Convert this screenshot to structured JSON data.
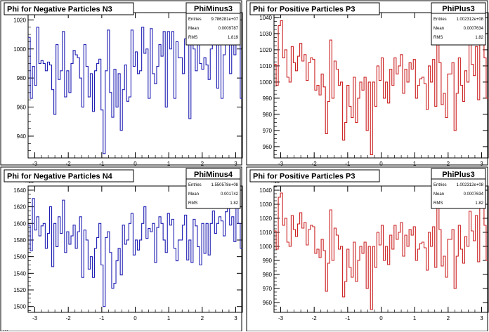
{
  "footer_text": "...",
  "chart_data": [
    {
      "type": "line",
      "title": "Phi for Negative Particles N3",
      "stats_name": "PhiMinus3",
      "stats": [
        {
          "label": "Entries",
          "value": "9.786281e+07"
        },
        {
          "label": "Mean",
          "value": "0.0009787"
        },
        {
          "label": "RMS",
          "value": "1.819"
        }
      ],
      "exponent_label": "×10",
      "line_color": "#1f1fb4",
      "xlim": [
        -3.2,
        3.2
      ],
      "ylim": [
        925,
        1025
      ],
      "xticks": [
        "-3",
        "-2",
        "-1",
        "0",
        "1",
        "2",
        "3"
      ],
      "yticks": [
        940,
        960,
        980,
        1000,
        1020
      ],
      "values": [
        1008,
        966,
        988,
        975,
        1015,
        990,
        992,
        990,
        985,
        991,
        989,
        972,
        955,
        1003,
        979,
        985,
        1012,
        967,
        985,
        970,
        990,
        999,
        996,
        994,
        980,
        960,
        1003,
        988,
        967,
        983,
        957,
        985,
        990,
        993,
        958,
        928,
        985,
        1013,
        970,
        953,
        986,
        960,
        983,
        944,
        972,
        989,
        964,
        967,
        1013,
        988,
        998,
        983,
        985,
        1015,
        997,
        1000,
        966,
        1014,
        983,
        976,
        988,
        1003,
        995,
        1012,
        960,
        1012,
        1000,
        1012,
        966,
        1005,
        994,
        994,
        983,
        1007,
        1015,
        952,
        1008,
        1000,
        985,
        1016,
        990,
        986,
        994,
        989,
        979,
        1000,
        1004,
        1005,
        973,
        1004,
        966,
        996,
        1014,
        1006,
        983,
        1005,
        996,
        1017,
        1012,
        966
      ]
    },
    {
      "type": "line",
      "title": "Phi for Positive Particles P3",
      "stats_name": "PhiPlus3",
      "stats": [
        {
          "label": "Entries",
          "value": "1.002312e+08"
        },
        {
          "label": "Mean",
          "value": "0.0007634"
        },
        {
          "label": "RMS",
          "value": "1.82"
        }
      ],
      "exponent_label": "×10³",
      "line_color": "#cc2020",
      "xlim": [
        -3.2,
        3.2
      ],
      "ylim": [
        953,
        1043
      ],
      "xticks": [
        "-3",
        "-2",
        "-1",
        "0",
        "1",
        "2",
        "3"
      ],
      "yticks": [
        960,
        970,
        980,
        990,
        1000,
        1010,
        1020,
        1030,
        1040
      ],
      "values": [
        1011,
        998,
        1035,
        1038,
        1015,
        1020,
        1003,
        1000,
        1022,
        1012,
        1007,
        1016,
        1024,
        1013,
        1017,
        1001,
        1012,
        1015,
        1014,
        995,
        998,
        992,
        1005,
        997,
        968,
        988,
        1026,
        990,
        1013,
        1008,
        998,
        1000,
        964,
        975,
        998,
        985,
        978,
        1003,
        975,
        990,
        1000,
        995,
        1003,
        970,
        1000,
        955,
        1000,
        985,
        1010,
        1001,
        1015,
        990,
        1000,
        987,
        1008,
        998,
        1015,
        1005,
        1010,
        1017,
        993,
        1008,
        1000,
        1012,
        1008,
        1014,
        990,
        998,
        1002,
        1003,
        999,
        983,
        1010,
        1000,
        1014,
        985,
        1028,
        1012,
        986,
        993,
        978,
        1005,
        1005,
        1012,
        970,
        993,
        1015,
        998,
        988,
        1007,
        1000,
        1025,
        1011,
        1004,
        1022,
        989,
        1030,
        1040,
        1015,
        990
      ]
    },
    {
      "type": "line",
      "title": "Phi for Negative Particles N4",
      "stats_name": "PhiMinus4",
      "stats": [
        {
          "label": "Entries",
          "value": "1.550578e+08"
        },
        {
          "label": "Mean",
          "value": "0.001742"
        },
        {
          "label": "RMS",
          "value": "1.82"
        }
      ],
      "exponent_label": "×10",
      "line_color": "#1f1fb4",
      "xlim": [
        -3.2,
        3.2
      ],
      "ylim": [
        1493,
        1645
      ],
      "xticks": [
        "-3",
        "-2",
        "-1",
        "0",
        "1",
        "2",
        "3"
      ],
      "yticks": [
        1500,
        1520,
        1540,
        1560,
        1580,
        1600,
        1620,
        1640
      ],
      "values": [
        1598,
        1567,
        1630,
        1592,
        1608,
        1585,
        1597,
        1600,
        1570,
        1588,
        1620,
        1548,
        1600,
        1572,
        1608,
        1588,
        1628,
        1565,
        1590,
        1575,
        1585,
        1598,
        1570,
        1590,
        1608,
        1535,
        1592,
        1580,
        1545,
        1560,
        1535,
        1570,
        1583,
        1600,
        1550,
        1500,
        1583,
        1590,
        1565,
        1522,
        1528,
        1555,
        1570,
        1538,
        1598,
        1575,
        1580,
        1600,
        1612,
        1562,
        1580,
        1568,
        1580,
        1600,
        1620,
        1582,
        1594,
        1590,
        1600,
        1553,
        1595,
        1608,
        1600,
        1580,
        1565,
        1612,
        1598,
        1605,
        1570,
        1555,
        1580,
        1580,
        1598,
        1610,
        1556,
        1580,
        1553,
        1605,
        1597,
        1572,
        1550,
        1600,
        1564,
        1600,
        1562,
        1600,
        1615,
        1588,
        1600,
        1608,
        1603,
        1585,
        1614,
        1620,
        1598,
        1608,
        1578,
        1622,
        1600,
        1570
      ]
    },
    {
      "type": "line",
      "title": "Phi for Positive Particles P3",
      "stats_name": "PhiPlus3",
      "stats": [
        {
          "label": "Entries",
          "value": "1.002312e+08"
        },
        {
          "label": "Mean",
          "value": "0.0007634"
        },
        {
          "label": "RMS",
          "value": "1.82"
        }
      ],
      "exponent_label": "×10³",
      "line_color": "#cc2020",
      "xlim": [
        -3.2,
        3.2
      ],
      "ylim": [
        953,
        1043
      ],
      "xticks": [
        "-3",
        "-2",
        "-1",
        "0",
        "1",
        "2",
        "3"
      ],
      "yticks": [
        960,
        970,
        980,
        990,
        1000,
        1010,
        1020,
        1030,
        1040
      ],
      "values": [
        1011,
        998,
        1035,
        1038,
        1015,
        1020,
        1003,
        1000,
        1022,
        1012,
        1007,
        1016,
        1024,
        1013,
        1017,
        1001,
        1012,
        1015,
        1014,
        995,
        998,
        992,
        1005,
        997,
        968,
        988,
        1026,
        990,
        1013,
        1008,
        998,
        1000,
        964,
        975,
        998,
        985,
        978,
        1003,
        975,
        990,
        1000,
        995,
        1003,
        970,
        1000,
        955,
        1000,
        985,
        1010,
        1001,
        1015,
        990,
        1000,
        987,
        1008,
        998,
        1015,
        1005,
        1010,
        1017,
        993,
        1008,
        1000,
        1012,
        1008,
        1014,
        990,
        998,
        1002,
        1003,
        999,
        983,
        1010,
        1000,
        1014,
        985,
        1028,
        1012,
        986,
        993,
        978,
        1005,
        1005,
        1012,
        970,
        993,
        1015,
        998,
        988,
        1007,
        1000,
        1025,
        1011,
        1004,
        1022,
        989,
        1030,
        1040,
        1015,
        990
      ]
    }
  ]
}
